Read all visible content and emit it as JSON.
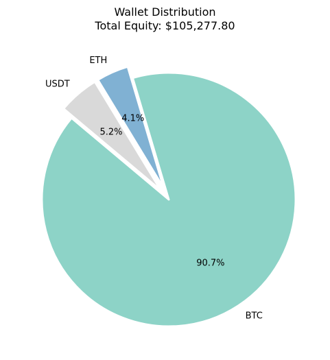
{
  "chart_data": {
    "type": "pie",
    "title": "Wallet Distribution",
    "subtitle": "Total Equity: $105,277.80",
    "slices": [
      {
        "label": "BTC",
        "value": 90.7,
        "pct_label": "90.7%",
        "color": "#8dd3c7",
        "exploded": false
      },
      {
        "label": "ETH",
        "value": 4.1,
        "pct_label": "4.1%",
        "color": "#80b1d3",
        "exploded": true
      },
      {
        "label": "USDT",
        "value": 5.2,
        "pct_label": "5.2%",
        "color": "#d9d9d9",
        "exploded": true
      }
    ]
  }
}
